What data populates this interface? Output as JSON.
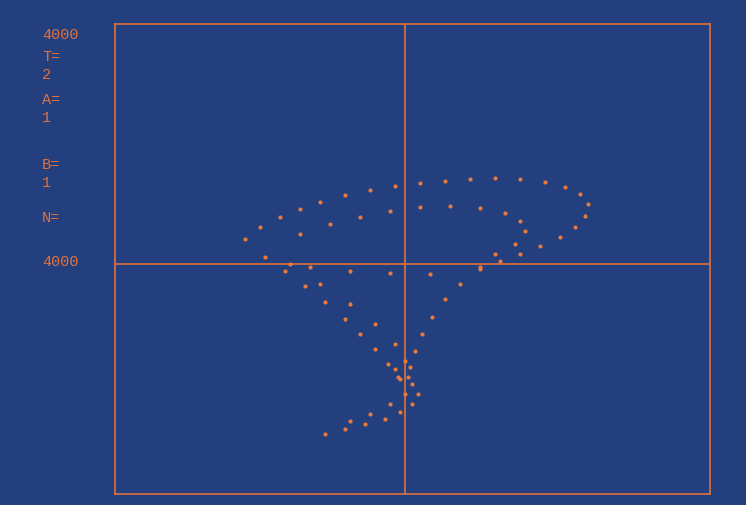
{
  "chart_data": {
    "type": "scatter",
    "annotations": [
      "4000",
      "T=",
      "2",
      "A=",
      "1",
      "B=",
      "1",
      "N=",
      "4000"
    ],
    "x": [
      -160,
      -145,
      -125,
      -105,
      -85,
      -60,
      -35,
      -10,
      15,
      40,
      65,
      90,
      115,
      140,
      160,
      175,
      183,
      180,
      170,
      155,
      135,
      115,
      95,
      75,
      -105,
      -75,
      -45,
      -15,
      15,
      45,
      75,
      100,
      115,
      120,
      110,
      90,
      -140,
      -120,
      -100,
      -80,
      -60,
      -45,
      -30,
      -17,
      -7,
      -115,
      -85,
      -55,
      -30,
      -10,
      0,
      75,
      55,
      40,
      27,
      17,
      10,
      5,
      -95,
      -55,
      -15,
      25,
      -5,
      7,
      13,
      7,
      -5,
      -20,
      -40,
      -60,
      -80,
      -10,
      3,
      0,
      -15,
      -35,
      -55
    ],
    "values": [
      25,
      37,
      47,
      55,
      62,
      69,
      74,
      78,
      81,
      83,
      85,
      86,
      85,
      82,
      77,
      70,
      60,
      48,
      37,
      27,
      18,
      10,
      3,
      -3,
      30,
      40,
      47,
      53,
      57,
      58,
      56,
      51,
      43,
      33,
      20,
      10,
      7,
      -7,
      -22,
      -38,
      -55,
      -70,
      -85,
      -100,
      -113,
      0,
      -20,
      -40,
      -60,
      -80,
      -97,
      -5,
      -20,
      -35,
      -53,
      -70,
      -87,
      -103,
      -3,
      -7,
      -9,
      -10,
      -115,
      -120,
      -130,
      -140,
      -148,
      -155,
      -160,
      -165,
      -170,
      -105,
      -113,
      -130,
      -140,
      -150,
      -157
    ],
    "xlim": [
      -290,
      305
    ],
    "ylim": [
      -230,
      240
    ],
    "xticks": [
      0
    ],
    "yticks": [
      0
    ],
    "grid": true,
    "tick_labels": false,
    "color": "#e8783c",
    "marker": "o"
  }
}
